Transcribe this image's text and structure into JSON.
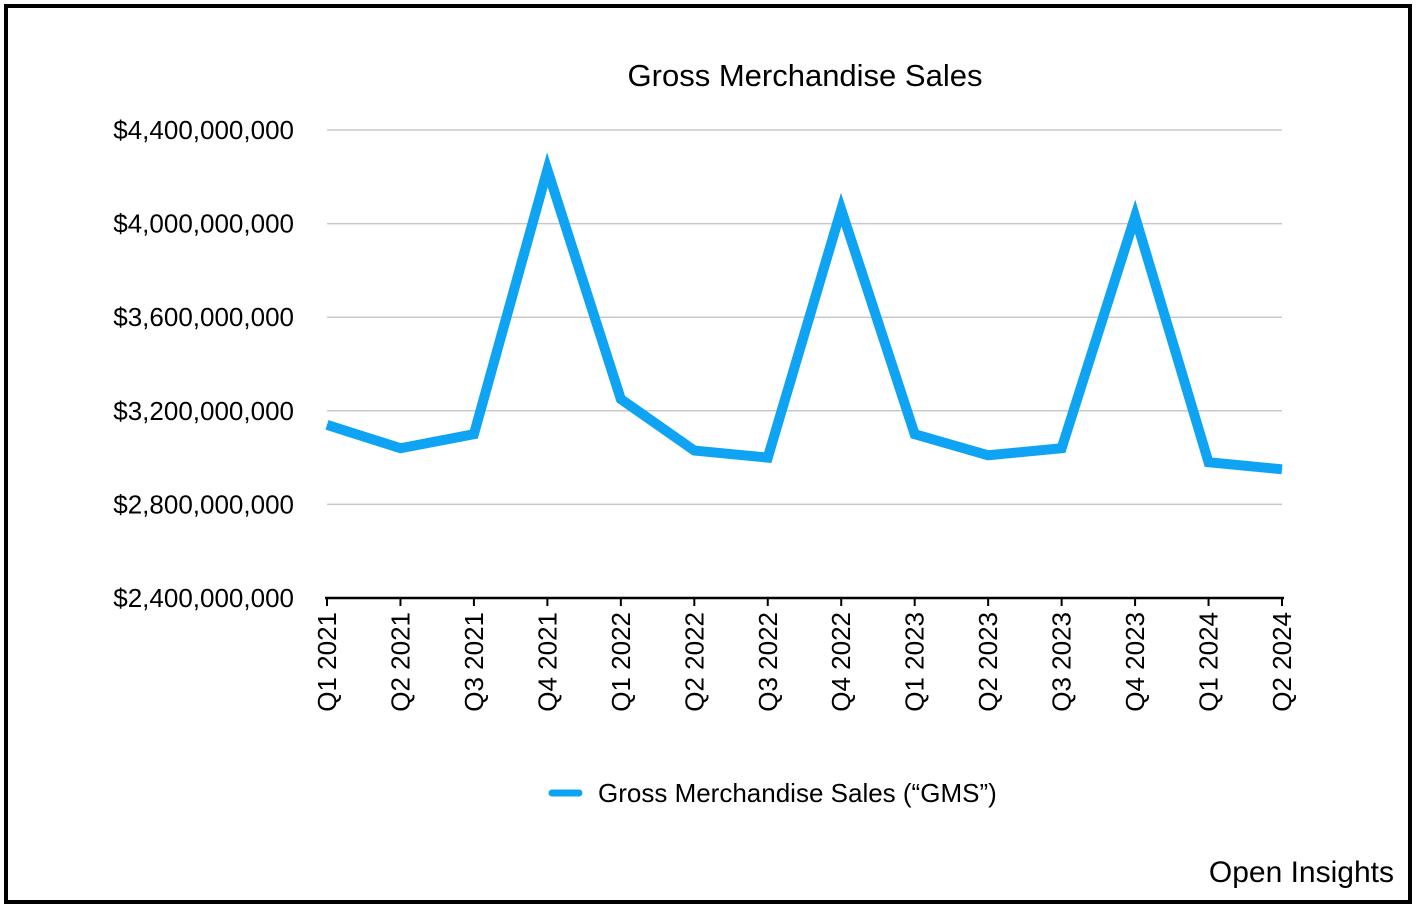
{
  "chart_data": {
    "type": "line",
    "title": "Gross Merchandise Sales",
    "xlabel": "",
    "ylabel": "",
    "categories": [
      "Q1 2021",
      "Q2 2021",
      "Q3 2021",
      "Q4 2021",
      "Q1 2022",
      "Q2 2022",
      "Q3 2022",
      "Q4 2022",
      "Q1 2023",
      "Q2 2023",
      "Q3 2023",
      "Q4 2023",
      "Q1 2024",
      "Q2 2024"
    ],
    "series": [
      {
        "name": "Gross Merchandise Sales (“GMS”)",
        "color": "#0fa4f3",
        "values": [
          3140000000,
          3040000000,
          3100000000,
          4230000000,
          3250000000,
          3030000000,
          3000000000,
          4060000000,
          3100000000,
          3010000000,
          3040000000,
          4030000000,
          2980000000,
          2950000000
        ]
      }
    ],
    "ylim": [
      2400000000,
      4400000000
    ],
    "yticks": [
      2400000000,
      2800000000,
      3200000000,
      3600000000,
      4000000000,
      4400000000
    ],
    "ytick_labels": [
      "$2,400,000,000",
      "$2,800,000,000",
      "$3,200,000,000",
      "$3,600,000,000",
      "$4,000,000,000",
      "$4,400,000,000"
    ],
    "grid": true,
    "legend_position": "bottom-center"
  },
  "footer": {
    "watermark": "Open Insights"
  }
}
